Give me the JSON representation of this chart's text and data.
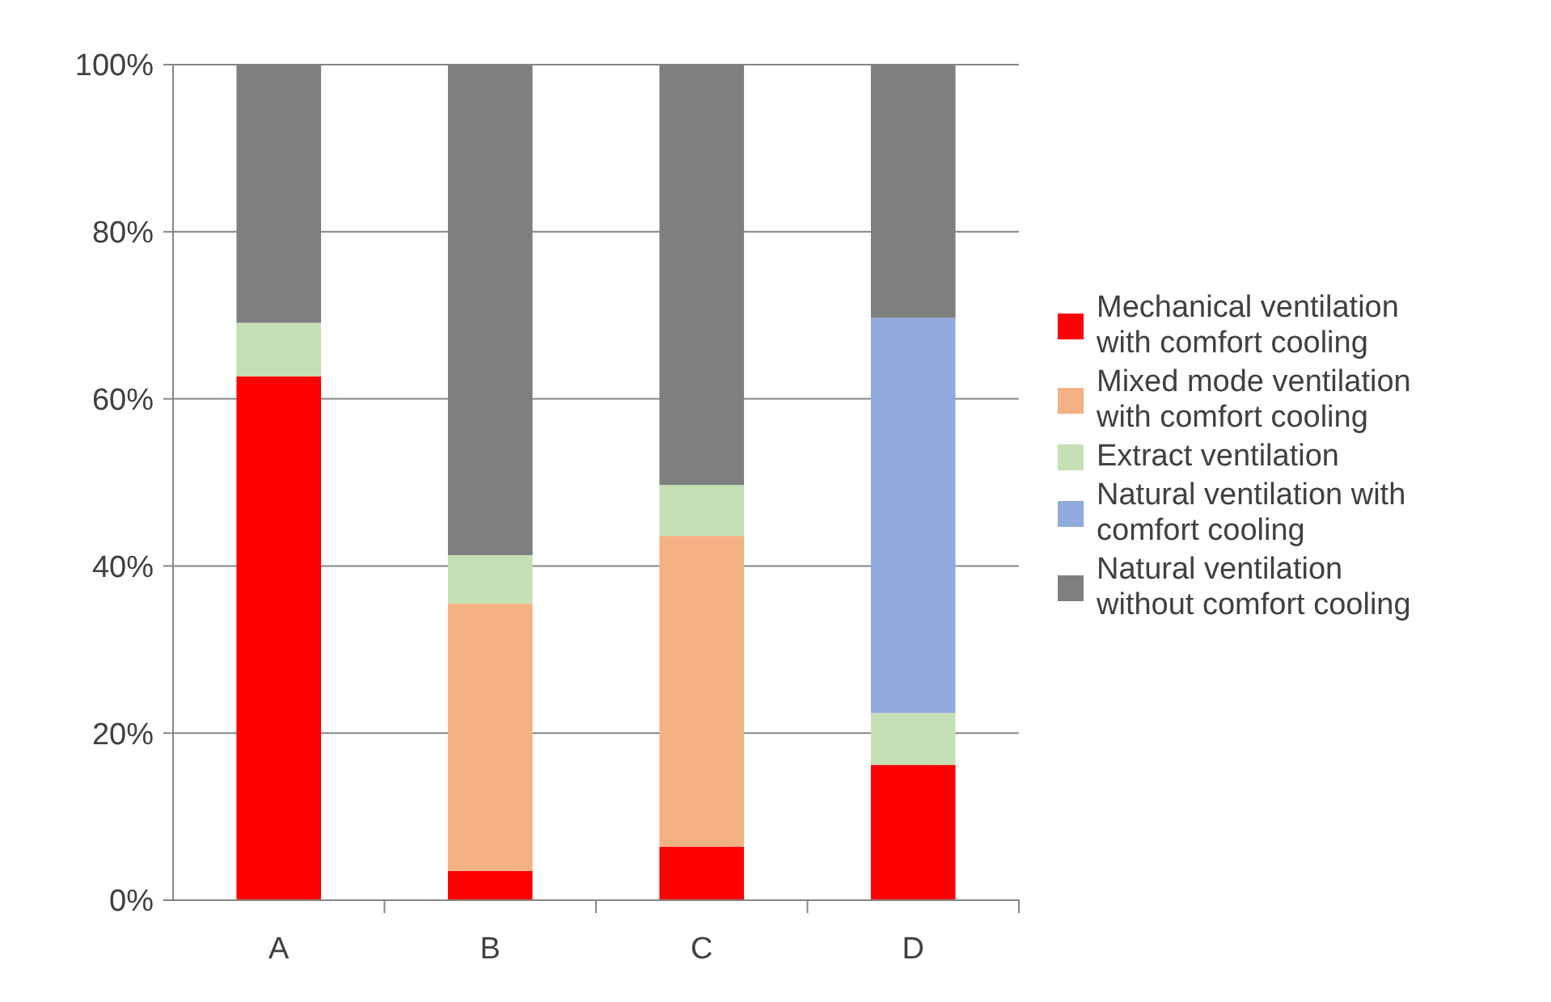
{
  "chart_data": {
    "type": "bar",
    "stacked": true,
    "categories": [
      "A",
      "B",
      "C",
      "D"
    ],
    "series": [
      {
        "name": "Mechanical ventilation with comfort cooling",
        "color": "#ff0000",
        "values": [
          62.7,
          3.5,
          6.4,
          16.2
        ]
      },
      {
        "name": "Mixed mode ventilation with comfort cooling",
        "color": "#f4b183",
        "values": [
          0,
          32,
          37.2,
          0
        ]
      },
      {
        "name": "Extract ventilation",
        "color": "#c5e0b4",
        "values": [
          6.4,
          5.8,
          6.1,
          6.2
        ]
      },
      {
        "name": "Natural ventilation with comfort cooling",
        "color": "#8faadc",
        "values": [
          0,
          0,
          0,
          47.3
        ]
      },
      {
        "name": "Natural ventilation without comfort cooling",
        "color": "#7f7f7f",
        "values": [
          30.9,
          58.7,
          50.3,
          30.3
        ]
      }
    ],
    "ylim": [
      0,
      100
    ],
    "yticks": [
      {
        "value": 0,
        "label": "0%"
      },
      {
        "value": 20,
        "label": "20%"
      },
      {
        "value": 40,
        "label": "40%"
      },
      {
        "value": 60,
        "label": "60%"
      },
      {
        "value": 80,
        "label": "80%"
      },
      {
        "value": 100,
        "label": "100%"
      }
    ],
    "grid": "y",
    "legend": "right"
  }
}
